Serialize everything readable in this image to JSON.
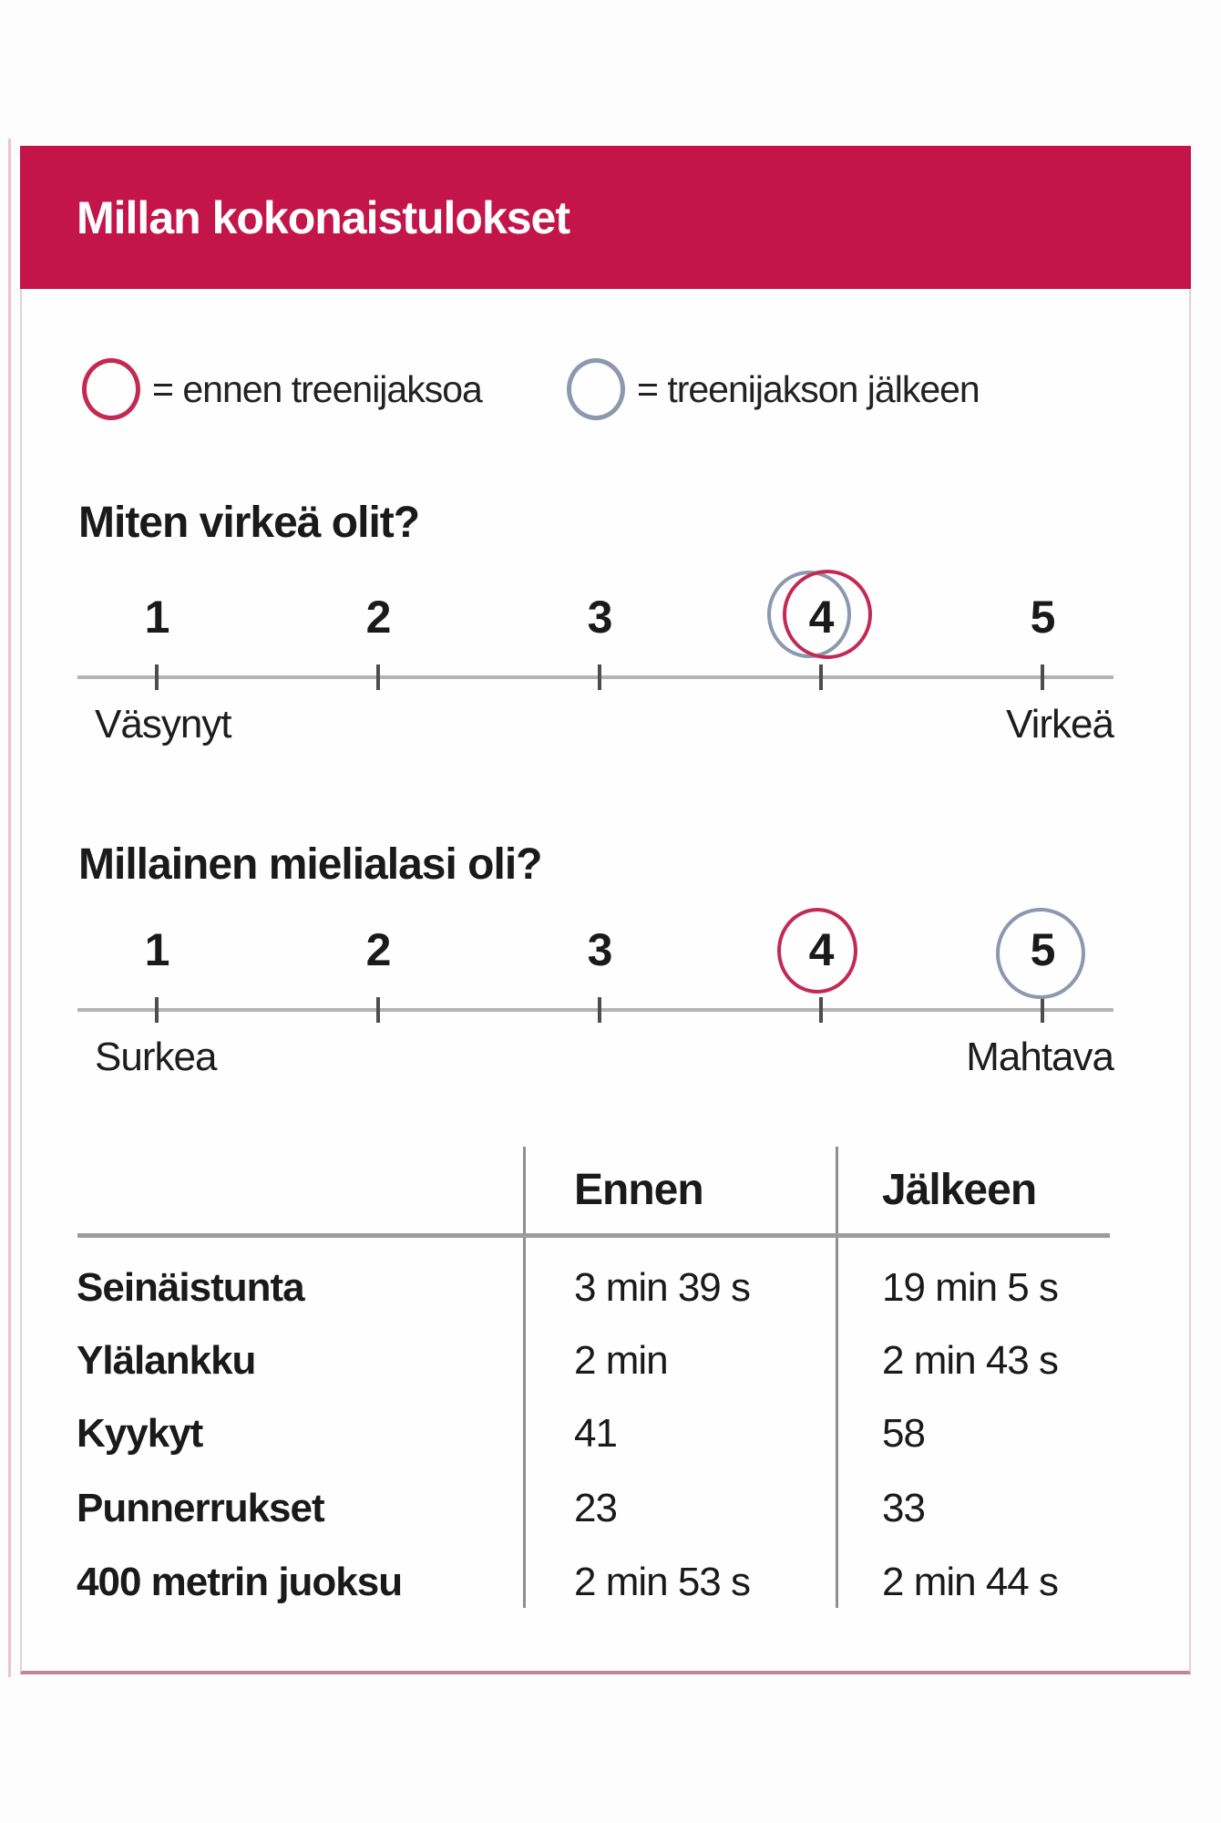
{
  "page": {
    "title": "Millan kokonaistulokset"
  },
  "legend": {
    "before": {
      "label": "= ennen treenijaksoa",
      "color": "#c22a54"
    },
    "after": {
      "label": "= treenijakson jälkeen",
      "color": "#8b98ae"
    }
  },
  "questions": [
    {
      "heading": "Miten virkeä olit?",
      "ticks": [
        "1",
        "2",
        "3",
        "4",
        "5"
      ],
      "min_label": "Väsynyt",
      "max_label": "Virkeä",
      "before_value": 4,
      "after_value": 4
    },
    {
      "heading": "Millainen mielialasi oli?",
      "ticks": [
        "1",
        "2",
        "3",
        "4",
        "5"
      ],
      "min_label": "Surkea",
      "max_label": "Mahtava",
      "before_value": 4,
      "after_value": 5
    }
  ],
  "table": {
    "headers": {
      "before": "Ennen",
      "after": "Jälkeen"
    },
    "rows": [
      {
        "label": "Seinäistunta",
        "before": "3 min 39 s",
        "after": "19 min 5 s"
      },
      {
        "label": "Ylälankku",
        "before": "2 min",
        "after": "2 min 43 s"
      },
      {
        "label": "Kyykyt",
        "before": "41",
        "after": "58"
      },
      {
        "label": "Punnerrukset",
        "before": "23",
        "after": "33"
      },
      {
        "label": "400 metrin juoksu",
        "before": "2 min 53 s",
        "after": "2 min 44 s"
      }
    ]
  },
  "colors": {
    "header_background": "#c31549",
    "before_circle": "#c22a54",
    "after_circle": "#8b98ae"
  },
  "chart_data": [
    {
      "type": "scatter",
      "title": "Miten virkeä olit?",
      "x_ticks": [
        1,
        2,
        3,
        4,
        5
      ],
      "x_min_label": "Väsynyt",
      "x_max_label": "Virkeä",
      "series": [
        {
          "name": "ennen treenijaksoa",
          "values": [
            4
          ]
        },
        {
          "name": "treenijakson jälkeen",
          "values": [
            4
          ]
        }
      ],
      "legend_position": "top",
      "grid": false
    },
    {
      "type": "scatter",
      "title": "Millainen mielialasi oli?",
      "x_ticks": [
        1,
        2,
        3,
        4,
        5
      ],
      "x_min_label": "Surkea",
      "x_max_label": "Mahtava",
      "series": [
        {
          "name": "ennen treenijaksoa",
          "values": [
            4
          ]
        },
        {
          "name": "treenijakson jälkeen",
          "values": [
            5
          ]
        }
      ],
      "legend_position": "top",
      "grid": false
    },
    {
      "type": "table",
      "columns": [
        "",
        "Ennen",
        "Jälkeen"
      ],
      "rows": [
        [
          "Seinäistunta",
          "3 min 39 s",
          "19 min 5 s"
        ],
        [
          "Ylälankku",
          "2 min",
          "2 min 43 s"
        ],
        [
          "Kyykyt",
          "41",
          "58"
        ],
        [
          "Punnerrukset",
          "23",
          "33"
        ],
        [
          "400 metrin juoksu",
          "2 min 53 s",
          "2 min 44 s"
        ]
      ]
    }
  ]
}
